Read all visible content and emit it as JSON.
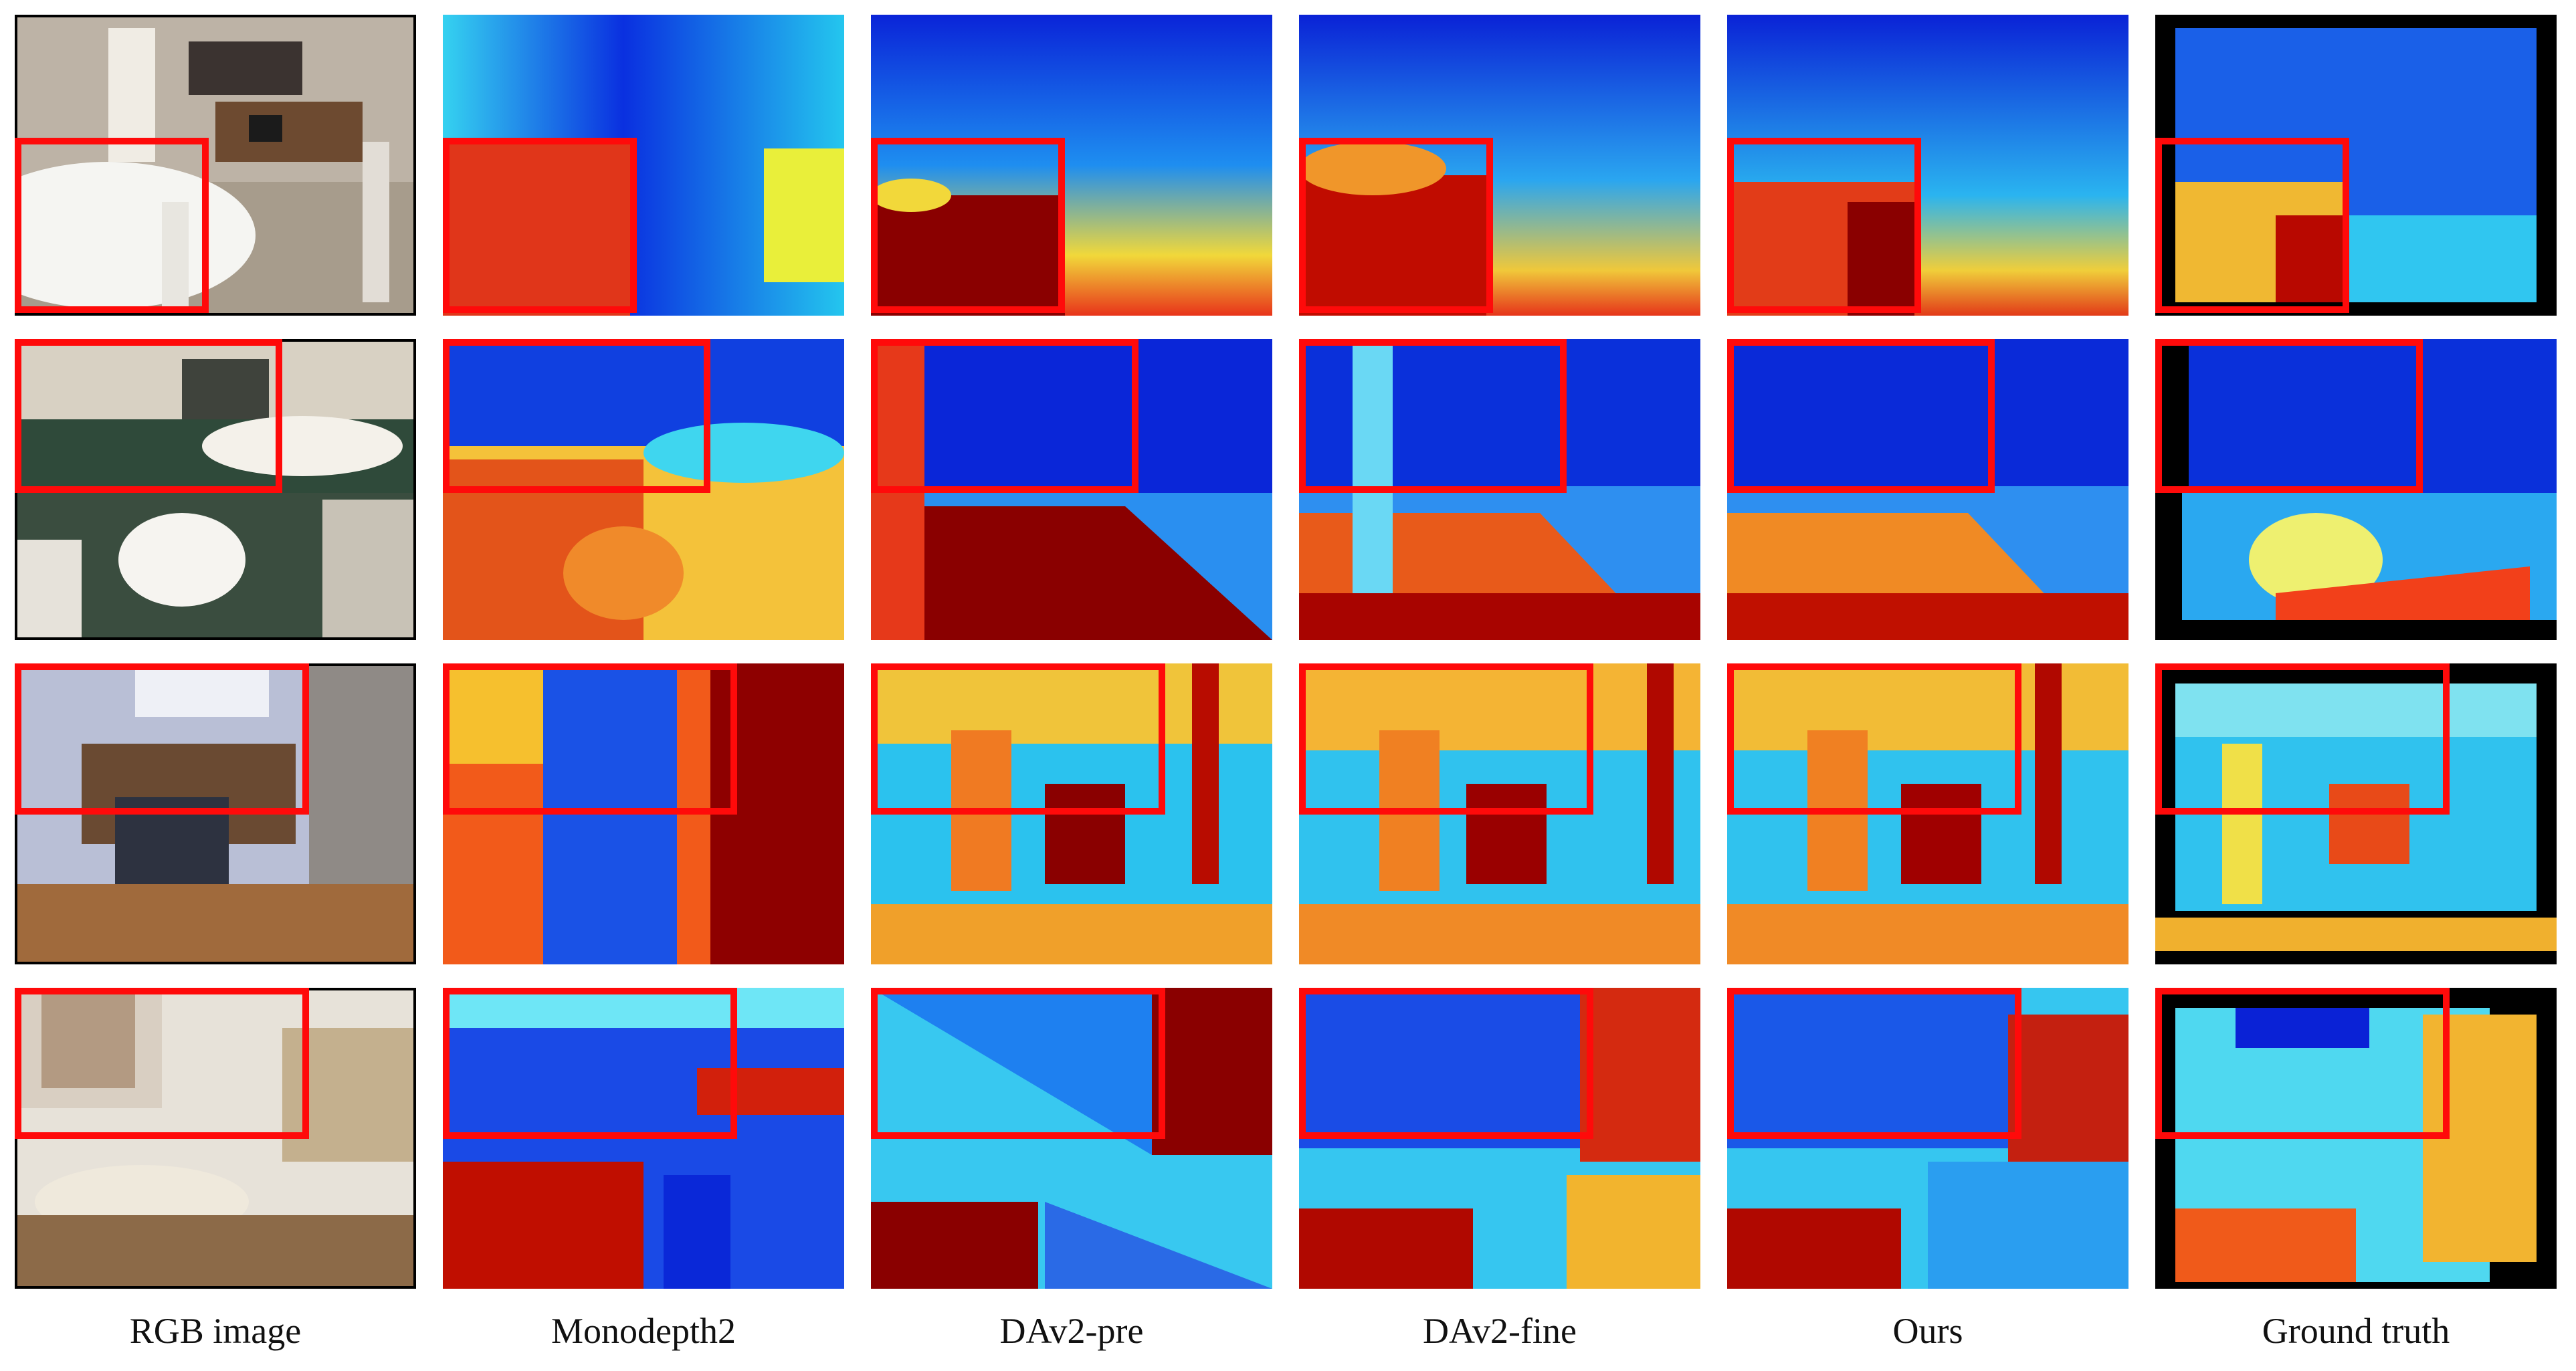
{
  "columns": [
    {
      "label": "RGB image",
      "kind": "rgb"
    },
    {
      "label": "Monodepth2",
      "kind": "mono"
    },
    {
      "label": "DAv2-pre",
      "kind": "pre"
    },
    {
      "label": "DAv2-fine",
      "kind": "fine"
    },
    {
      "label": "Ours",
      "kind": "ours"
    },
    {
      "label": "Ground truth",
      "kind": "gt"
    }
  ],
  "rows": [
    {
      "scene": "dining-room"
    },
    {
      "scene": "bathroom-tub"
    },
    {
      "scene": "bedroom-desk"
    },
    {
      "scene": "bathroom-sink"
    }
  ],
  "colors": {
    "highlight": "#ff0a0a",
    "depth_far": "#0a1fd8",
    "depth_mid": "#2fd0f0",
    "depth_near_mid": "#f4e23a",
    "depth_near": "#8a0000",
    "invalid": "#000000"
  }
}
